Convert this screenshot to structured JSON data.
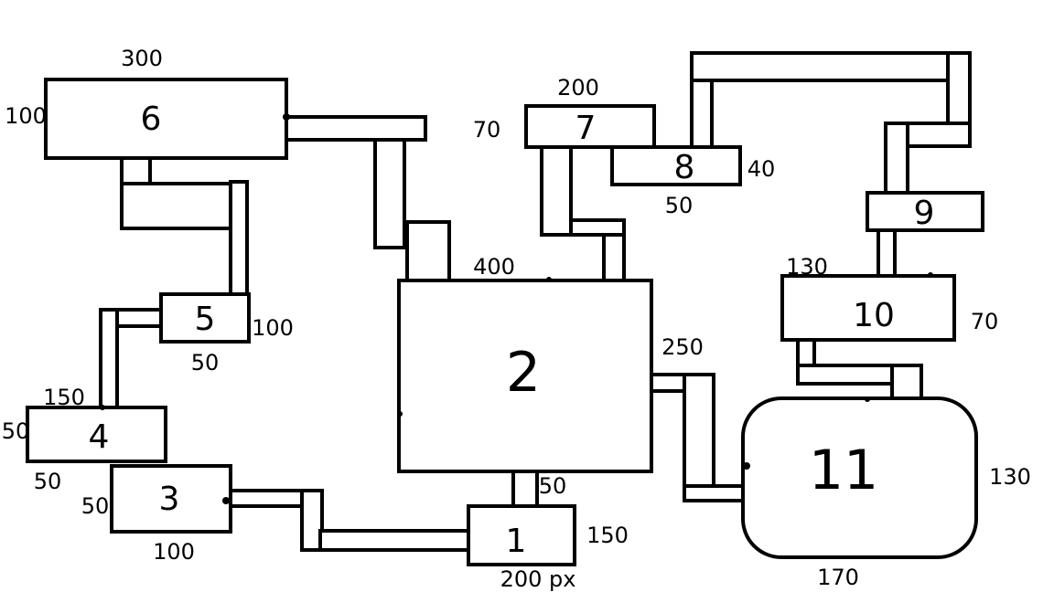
{
  "colors": {
    "ink": "#000000",
    "paper": "#ffffff"
  },
  "boxes": {
    "b1": {
      "label": "1"
    },
    "b2": {
      "label": "2"
    },
    "b3": {
      "label": "3"
    },
    "b4": {
      "label": "4"
    },
    "b5": {
      "label": "5"
    },
    "b6": {
      "label": "6"
    },
    "b7": {
      "label": "7"
    },
    "b8": {
      "label": "8"
    },
    "b9": {
      "label": "9"
    },
    "b10": {
      "label": "10"
    },
    "b11": {
      "label": "11"
    }
  },
  "dimensions": {
    "b6_width": "300",
    "b6_height": "100",
    "b7_width": "200",
    "b7_height": "70",
    "b8_width": "50",
    "b8_height": "40",
    "b5_width": "50",
    "b5_height": "100",
    "b4_width": "150",
    "b4_height": "50",
    "b4_bottom": "50",
    "b3_height": "50",
    "b3_width": "100",
    "b2_width": "400",
    "b2_right": "250",
    "b1_top": "50",
    "b1_height": "150",
    "b1_width": "200 px",
    "b10_width": "130",
    "b10_height": "70",
    "b11_height": "130",
    "b11_width": "170"
  }
}
